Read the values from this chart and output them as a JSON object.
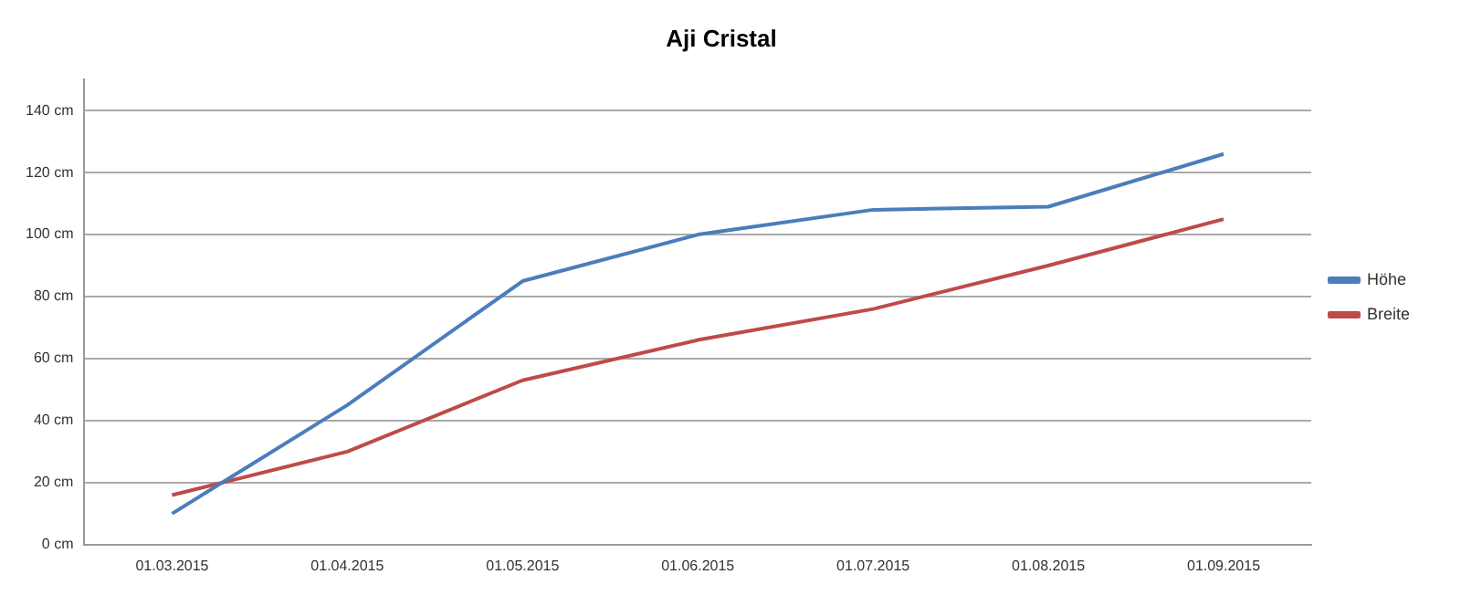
{
  "chart_data": {
    "type": "line",
    "title": "Aji Cristal",
    "categories": [
      "01.03.2015",
      "01.04.2015",
      "01.05.2015",
      "01.06.2015",
      "01.07.2015",
      "01.08.2015",
      "01.09.2015"
    ],
    "series": [
      {
        "name": "Höhe",
        "color": "#4a7ebb",
        "values": [
          10,
          45,
          85,
          100,
          108,
          109,
          126
        ]
      },
      {
        "name": "Breite",
        "color": "#be4b48",
        "values": [
          16,
          30,
          53,
          66,
          76,
          90,
          105
        ]
      }
    ],
    "ylim": [
      0,
      150
    ],
    "yticks": [
      {
        "value": 0,
        "label": "0 cm"
      },
      {
        "value": 20,
        "label": "20 cm"
      },
      {
        "value": 40,
        "label": "40 cm"
      },
      {
        "value": 60,
        "label": "60 cm"
      },
      {
        "value": 80,
        "label": "80 cm"
      },
      {
        "value": 100,
        "label": "100 cm"
      },
      {
        "value": 120,
        "label": "120 cm"
      },
      {
        "value": 140,
        "label": "140 cm"
      }
    ],
    "grid": "y",
    "legend": "right",
    "marker": "none",
    "line_style": "solid"
  }
}
